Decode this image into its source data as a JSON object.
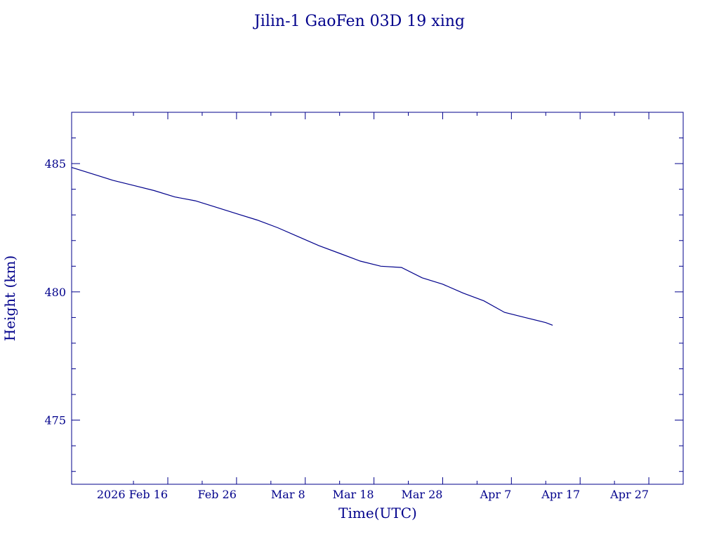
{
  "chart_data": {
    "type": "line",
    "title": "Jilin-1 GaoFen 03D 19 xing",
    "xlabel": "Time(UTC)",
    "ylabel": "Height (km)",
    "ylim": [
      472.5,
      487
    ],
    "xlim": [
      "2026-02-02",
      "2026-05-02"
    ],
    "grid": false,
    "x_tick_labels": [
      "2026 Feb 16",
      "Feb 26",
      "Mar  8",
      "Mar 18",
      "Mar 28",
      "Apr  7",
      "Apr 17",
      "Apr 27"
    ],
    "x_tick_dates": [
      "2026-02-16",
      "2026-02-26",
      "2026-03-08",
      "2026-03-18",
      "2026-03-28",
      "2026-04-07",
      "2026-04-17",
      "2026-04-27"
    ],
    "y_tick_labels": [
      "475",
      "480",
      "485"
    ],
    "y_tick_values": [
      475,
      480,
      485
    ],
    "y_minor_tick_values": [
      473,
      474,
      476,
      477,
      478,
      479,
      481,
      482,
      483,
      484,
      486
    ],
    "series": [
      {
        "color": "#00008b",
        "x": [
          "2026-02-02",
          "2026-02-05",
          "2026-02-08",
          "2026-02-11",
          "2026-02-14",
          "2026-02-17",
          "2026-02-20",
          "2026-02-23",
          "2026-02-26",
          "2026-03-01",
          "2026-03-04",
          "2026-03-07",
          "2026-03-10",
          "2026-03-13",
          "2026-03-16",
          "2026-03-19",
          "2026-03-22",
          "2026-03-25",
          "2026-03-28",
          "2026-03-31",
          "2026-04-03",
          "2026-04-06",
          "2026-04-09",
          "2026-04-12",
          "2026-04-13"
        ],
        "y": [
          484.85,
          484.6,
          484.35,
          484.15,
          483.95,
          483.7,
          483.55,
          483.3,
          483.05,
          482.8,
          482.5,
          482.15,
          481.8,
          481.5,
          481.2,
          481.0,
          480.95,
          480.55,
          480.3,
          479.95,
          479.65,
          479.2,
          479.0,
          478.8,
          478.7
        ]
      }
    ]
  }
}
